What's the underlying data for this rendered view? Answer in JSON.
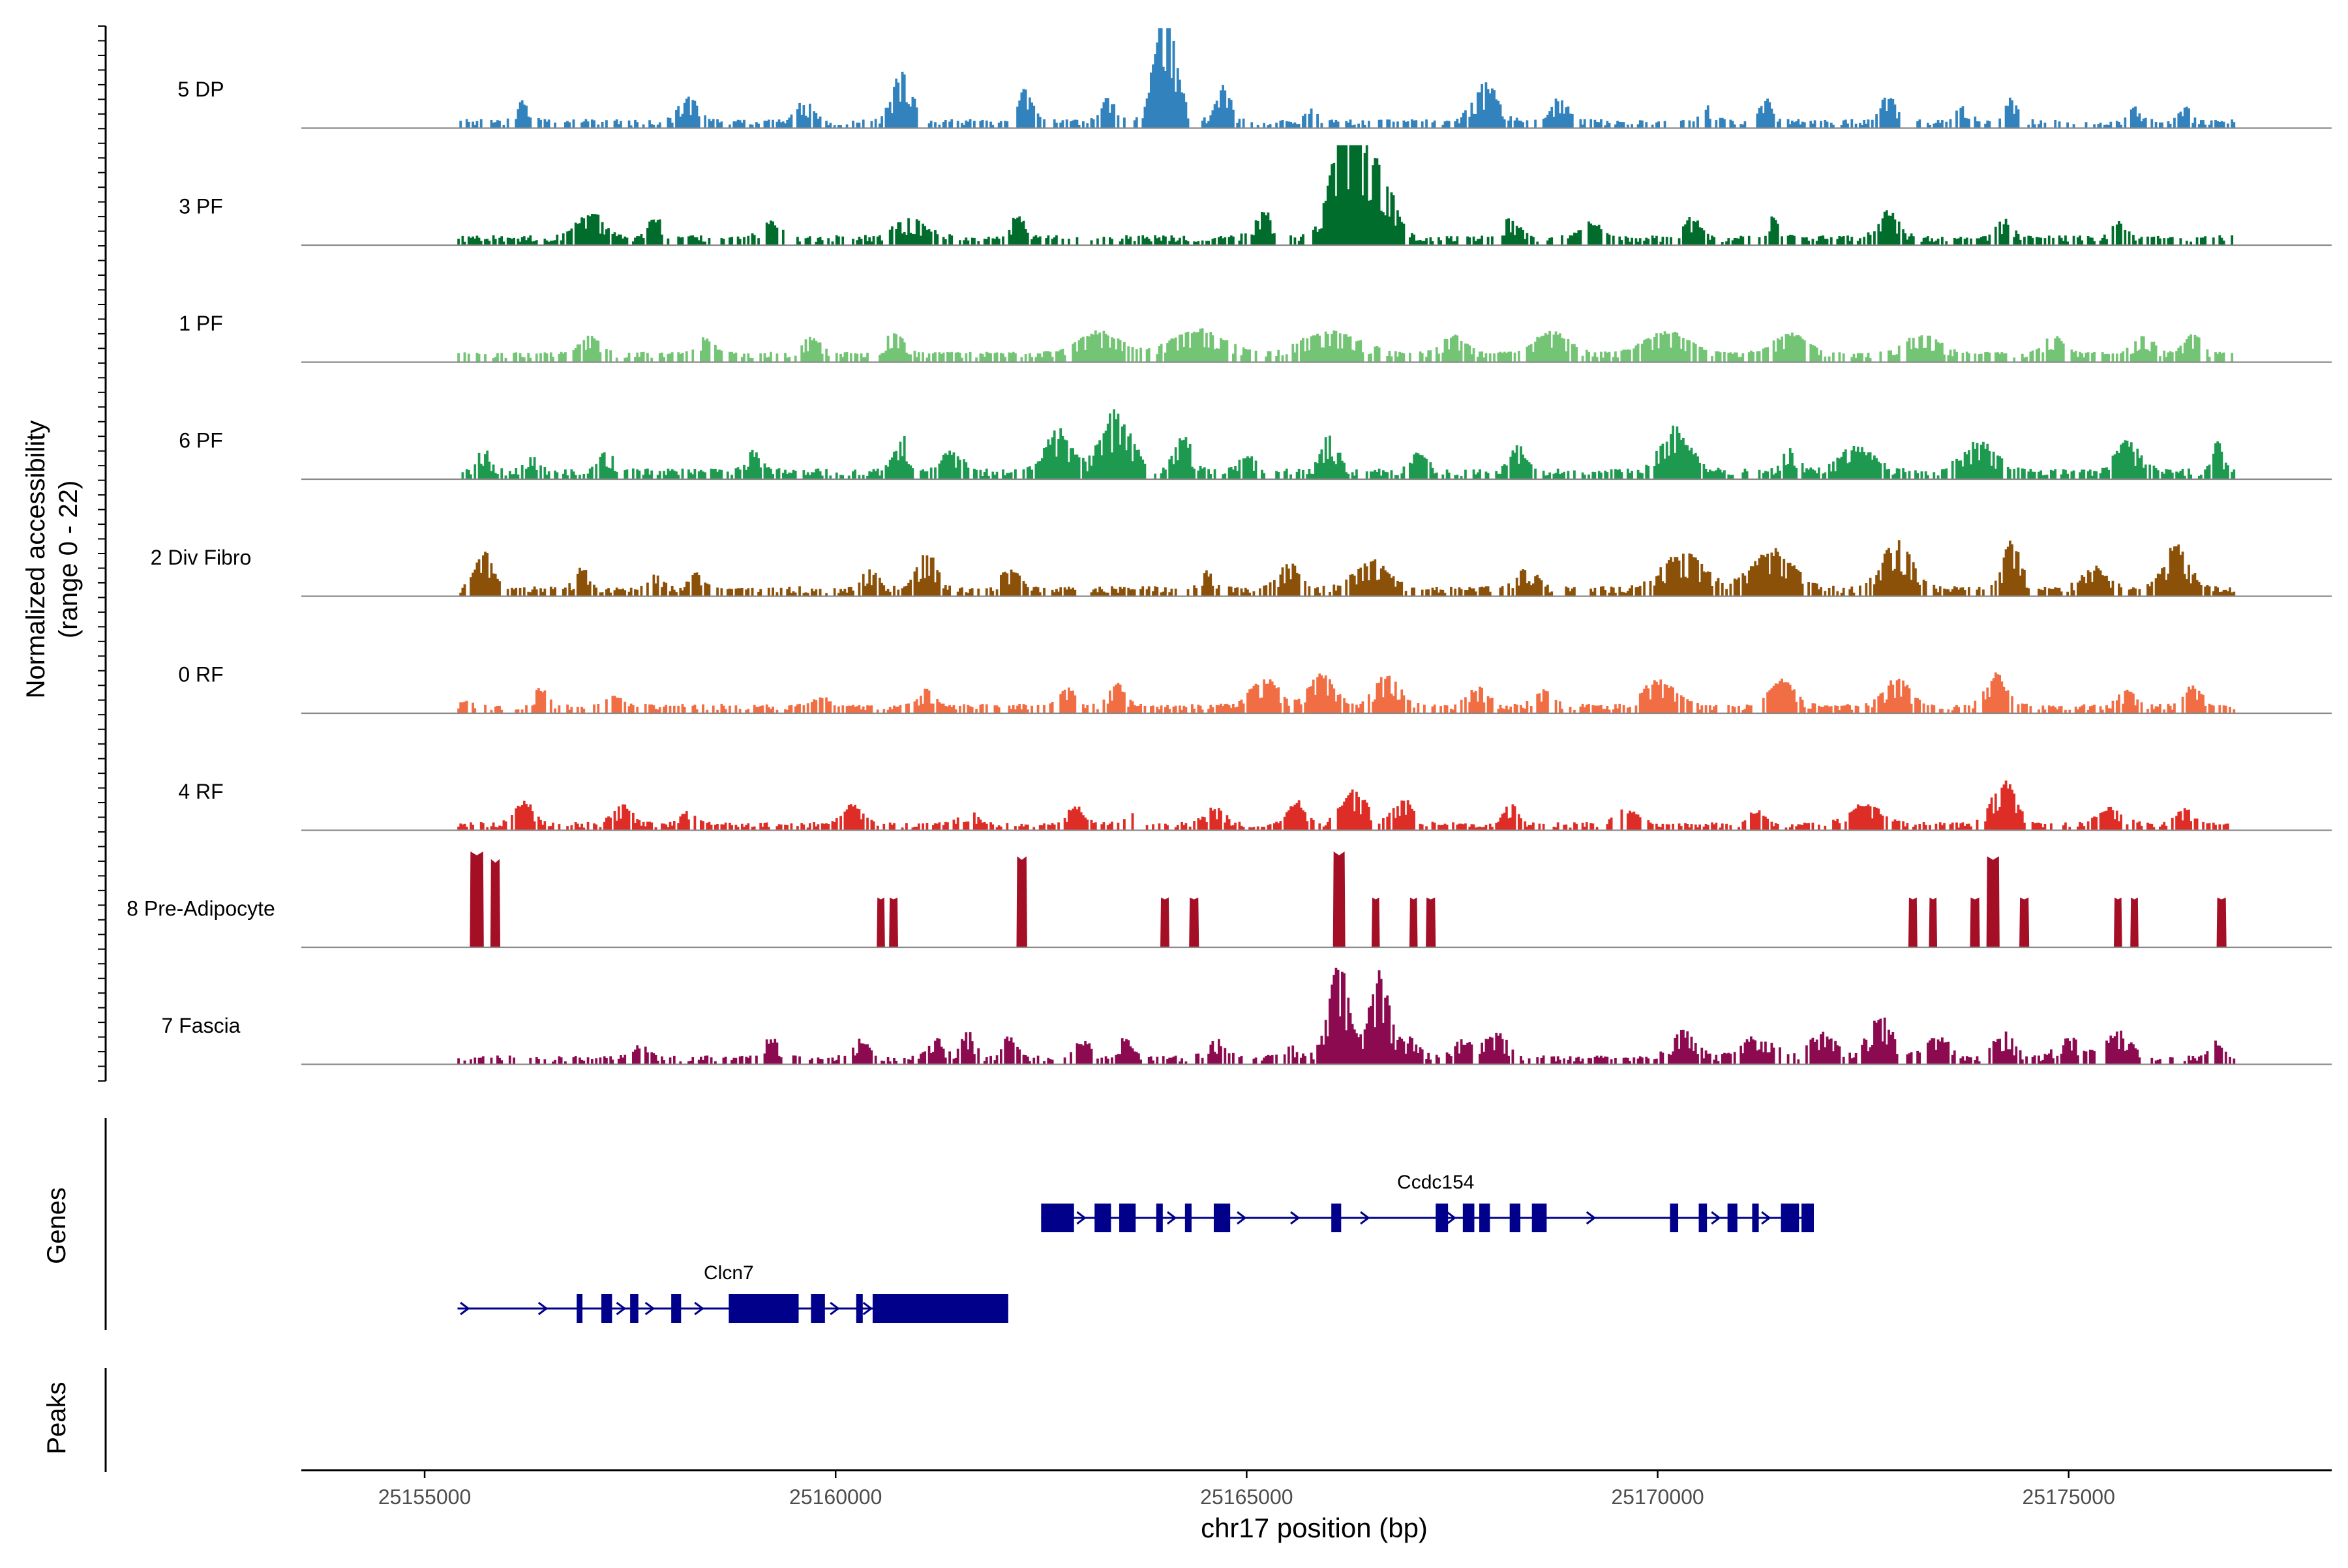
{
  "chart_data": {
    "type": "area",
    "title": "",
    "xlabel": "chr17 position (bp)",
    "ylabel_lines": [
      "Normalized accessibility",
      "(range 0 - 22)"
    ],
    "y_range": [
      0,
      22
    ],
    "xlim": [
      25153500,
      25178200
    ],
    "xticks": [
      25155000,
      25160000,
      25165000,
      25170000,
      25175000
    ],
    "xtick_labels": [
      "25155000",
      "25160000",
      "25165000",
      "25170000",
      "25175000"
    ],
    "track_extent": [
      25155400,
      25177000
    ],
    "tracks": [
      {
        "name": "5 DP",
        "color": "#3182bd",
        "density": 0.52,
        "base": 0.05,
        "noise": 0.1,
        "peaks": [
          [
            25156200,
            0.18,
            80
          ],
          [
            25158200,
            0.22,
            120
          ],
          [
            25159600,
            0.18,
            100
          ],
          [
            25160800,
            0.42,
            120
          ],
          [
            25162300,
            0.3,
            80
          ],
          [
            25163300,
            0.2,
            90
          ],
          [
            25164000,
            1.0,
            130
          ],
          [
            25164700,
            0.32,
            90
          ],
          [
            25165800,
            0.1,
            80
          ],
          [
            25167900,
            0.32,
            150
          ],
          [
            25168800,
            0.22,
            90
          ],
          [
            25170600,
            0.14,
            80
          ],
          [
            25171300,
            0.2,
            80
          ],
          [
            25172800,
            0.24,
            90
          ],
          [
            25173700,
            0.14,
            80
          ],
          [
            25174300,
            0.2,
            80
          ],
          [
            25175800,
            0.14,
            60
          ],
          [
            25176400,
            0.14,
            60
          ]
        ]
      },
      {
        "name": "3 PF",
        "color": "#006d2c",
        "density": 0.6,
        "base": 0.06,
        "noise": 0.1,
        "peaks": [
          [
            25157000,
            0.22,
            150
          ],
          [
            25157800,
            0.16,
            100
          ],
          [
            25159200,
            0.14,
            120
          ],
          [
            25160900,
            0.15,
            200
          ],
          [
            25162200,
            0.2,
            80
          ],
          [
            25165200,
            0.22,
            120
          ],
          [
            25166200,
            1.0,
            180
          ],
          [
            25166600,
            0.55,
            180
          ],
          [
            25168200,
            0.16,
            100
          ],
          [
            25169200,
            0.14,
            120
          ],
          [
            25170400,
            0.16,
            120
          ],
          [
            25171400,
            0.18,
            80
          ],
          [
            25172800,
            0.22,
            120
          ],
          [
            25174200,
            0.15,
            100
          ],
          [
            25175600,
            0.14,
            80
          ]
        ]
      },
      {
        "name": "1 PF",
        "color": "#74c476",
        "density": 0.62,
        "base": 0.08,
        "noise": 0.06,
        "peaks": [
          [
            25157000,
            0.16,
            120
          ],
          [
            25158400,
            0.14,
            100
          ],
          [
            25159700,
            0.14,
            120
          ],
          [
            25160700,
            0.18,
            120
          ],
          [
            25163200,
            0.2,
            250
          ],
          [
            25164400,
            0.22,
            300
          ],
          [
            25166000,
            0.2,
            350
          ],
          [
            25167500,
            0.16,
            150
          ],
          [
            25168700,
            0.2,
            200
          ],
          [
            25170100,
            0.2,
            250
          ],
          [
            25171600,
            0.18,
            200
          ],
          [
            25173200,
            0.18,
            200
          ],
          [
            25174800,
            0.16,
            120
          ],
          [
            25175900,
            0.16,
            120
          ],
          [
            25176500,
            0.18,
            100
          ]
        ]
      },
      {
        "name": "6 PF",
        "color": "#1d9a4f",
        "density": 0.62,
        "base": 0.06,
        "noise": 0.12,
        "peaks": [
          [
            25155700,
            0.18,
            80
          ],
          [
            25156300,
            0.14,
            80
          ],
          [
            25157200,
            0.16,
            100
          ],
          [
            25159000,
            0.16,
            100
          ],
          [
            25160800,
            0.3,
            100
          ],
          [
            25161400,
            0.18,
            120
          ],
          [
            25162700,
            0.35,
            150
          ],
          [
            25163400,
            0.5,
            180
          ],
          [
            25164200,
            0.3,
            120
          ],
          [
            25165000,
            0.14,
            100
          ],
          [
            25166000,
            0.3,
            100
          ],
          [
            25167100,
            0.16,
            100
          ],
          [
            25168300,
            0.2,
            100
          ],
          [
            25170200,
            0.36,
            180
          ],
          [
            25171600,
            0.18,
            100
          ],
          [
            25172400,
            0.22,
            200
          ],
          [
            25173900,
            0.24,
            200
          ],
          [
            25175700,
            0.24,
            150
          ],
          [
            25176800,
            0.26,
            60
          ]
        ]
      },
      {
        "name": "2 Div Fibro",
        "color": "#8c5109",
        "density": 0.62,
        "base": 0.06,
        "noise": 0.1,
        "peaks": [
          [
            25155700,
            0.34,
            100
          ],
          [
            25156900,
            0.18,
            80
          ],
          [
            25157800,
            0.14,
            80
          ],
          [
            25158300,
            0.14,
            80
          ],
          [
            25160400,
            0.16,
            100
          ],
          [
            25161100,
            0.3,
            120
          ],
          [
            25162100,
            0.16,
            120
          ],
          [
            25164500,
            0.14,
            100
          ],
          [
            25165500,
            0.22,
            120
          ],
          [
            25166500,
            0.24,
            200
          ],
          [
            25168400,
            0.18,
            120
          ],
          [
            25170300,
            0.3,
            250
          ],
          [
            25171400,
            0.34,
            250
          ],
          [
            25172900,
            0.4,
            180
          ],
          [
            25174300,
            0.44,
            100
          ],
          [
            25175300,
            0.18,
            150
          ],
          [
            25176300,
            0.38,
            150
          ]
        ]
      },
      {
        "name": "0 RF",
        "color": "#f16d43",
        "density": 0.58,
        "base": 0.06,
        "noise": 0.08,
        "peaks": [
          [
            25155500,
            0.05,
            60
          ],
          [
            25156400,
            0.16,
            80
          ],
          [
            25157300,
            0.1,
            80
          ],
          [
            25159800,
            0.08,
            100
          ],
          [
            25161100,
            0.14,
            100
          ],
          [
            25162800,
            0.16,
            100
          ],
          [
            25163400,
            0.2,
            100
          ],
          [
            25165200,
            0.24,
            180
          ],
          [
            25165900,
            0.28,
            150
          ],
          [
            25166700,
            0.28,
            150
          ],
          [
            25167800,
            0.16,
            120
          ],
          [
            25168600,
            0.14,
            120
          ],
          [
            25170000,
            0.22,
            200
          ],
          [
            25171500,
            0.24,
            150
          ],
          [
            25172900,
            0.24,
            150
          ],
          [
            25174100,
            0.28,
            120
          ],
          [
            25175700,
            0.14,
            100
          ],
          [
            25176500,
            0.18,
            100
          ]
        ]
      },
      {
        "name": "4 RF",
        "color": "#de2d26",
        "density": 0.62,
        "base": 0.05,
        "noise": 0.08,
        "peaks": [
          [
            25156200,
            0.2,
            120
          ],
          [
            25157400,
            0.16,
            120
          ],
          [
            25158200,
            0.12,
            100
          ],
          [
            25160200,
            0.18,
            120
          ],
          [
            25161600,
            0.12,
            100
          ],
          [
            25162900,
            0.16,
            100
          ],
          [
            25163600,
            0.1,
            100
          ],
          [
            25164600,
            0.14,
            120
          ],
          [
            25165600,
            0.2,
            100
          ],
          [
            25166300,
            0.3,
            150
          ],
          [
            25166900,
            0.22,
            120
          ],
          [
            25168200,
            0.18,
            80
          ],
          [
            25169600,
            0.12,
            150
          ],
          [
            25171200,
            0.12,
            100
          ],
          [
            25172500,
            0.18,
            200
          ],
          [
            25174200,
            0.38,
            150
          ],
          [
            25175500,
            0.14,
            150
          ],
          [
            25176400,
            0.14,
            100
          ]
        ]
      },
      {
        "name": "8 Pre-Adipocyte",
        "color": "#a50f26",
        "discrete": true,
        "blocks": [
          [
            25155550,
            25155720,
            1.0
          ],
          [
            25155800,
            25155920,
            0.92
          ],
          [
            25160500,
            25160600,
            0.52
          ],
          [
            25160650,
            25160760,
            0.52
          ],
          [
            25162200,
            25162330,
            0.95
          ],
          [
            25163950,
            25164060,
            0.52
          ],
          [
            25164300,
            25164420,
            0.52
          ],
          [
            25166050,
            25166200,
            1.0
          ],
          [
            25166520,
            25166620,
            0.52
          ],
          [
            25166980,
            25167080,
            0.52
          ],
          [
            25167180,
            25167300,
            0.52
          ],
          [
            25173050,
            25173160,
            0.52
          ],
          [
            25173300,
            25173400,
            0.52
          ],
          [
            25173800,
            25173920,
            0.52
          ],
          [
            25174000,
            25174160,
            0.95
          ],
          [
            25174400,
            25174520,
            0.52
          ],
          [
            25175550,
            25175650,
            0.52
          ],
          [
            25175750,
            25175850,
            0.52
          ],
          [
            25176800,
            25176920,
            0.52
          ]
        ]
      },
      {
        "name": "7 Fascia",
        "color": "#8b0a50",
        "density": 0.56,
        "base": 0.05,
        "noise": 0.1,
        "peaks": [
          [
            25157600,
            0.1,
            100
          ],
          [
            25159200,
            0.16,
            100
          ],
          [
            25160300,
            0.16,
            100
          ],
          [
            25161200,
            0.16,
            100
          ],
          [
            25161600,
            0.22,
            80
          ],
          [
            25162100,
            0.18,
            80
          ],
          [
            25163000,
            0.14,
            100
          ],
          [
            25163500,
            0.16,
            100
          ],
          [
            25164600,
            0.16,
            120
          ],
          [
            25165500,
            0.12,
            100
          ],
          [
            25166100,
            0.85,
            120
          ],
          [
            25166600,
            0.75,
            120
          ],
          [
            25167000,
            0.16,
            120
          ],
          [
            25167600,
            0.14,
            100
          ],
          [
            25168000,
            0.22,
            150
          ],
          [
            25170300,
            0.22,
            150
          ],
          [
            25171200,
            0.18,
            200
          ],
          [
            25172000,
            0.22,
            150
          ],
          [
            25172700,
            0.35,
            150
          ],
          [
            25173400,
            0.18,
            150
          ],
          [
            25174200,
            0.22,
            120
          ],
          [
            25175000,
            0.16,
            150
          ],
          [
            25175600,
            0.22,
            150
          ],
          [
            25176800,
            0.14,
            80
          ]
        ]
      }
    ],
    "gene_track_label": "Genes",
    "genes": [
      {
        "name": "Ccdc154",
        "start": 25162500,
        "end": 25171900,
        "row": 0,
        "exons": [
          [
            25162500,
            25162900
          ],
          [
            25163150,
            25163350
          ],
          [
            25163450,
            25163650
          ],
          [
            25163900,
            25163980
          ],
          [
            25164250,
            25164330
          ],
          [
            25164600,
            25164800
          ],
          [
            25166030,
            25166150
          ],
          [
            25167300,
            25167450
          ],
          [
            25167630,
            25167770
          ],
          [
            25167830,
            25167960
          ],
          [
            25168200,
            25168330
          ],
          [
            25168470,
            25168650
          ],
          [
            25170150,
            25170250
          ],
          [
            25170500,
            25170600
          ],
          [
            25170850,
            25170970
          ],
          [
            25171150,
            25171230
          ],
          [
            25171500,
            25171720
          ],
          [
            25171750,
            25171900
          ]
        ],
        "arrows": [
          25163000,
          25164100,
          25164950,
          25165600,
          25166450,
          25167500,
          25169200,
          25170720,
          25171330
        ]
      },
      {
        "name": "Clcn7",
        "start": 25155400,
        "end": 25162100,
        "row": 1,
        "exons": [
          [
            25156850,
            25156920
          ],
          [
            25157150,
            25157280
          ],
          [
            25157500,
            25157600
          ],
          [
            25158000,
            25158120
          ],
          [
            25158700,
            25159550
          ],
          [
            25159700,
            25159870
          ],
          [
            25160250,
            25160330
          ],
          [
            25160450,
            25162100
          ]
        ],
        "arrows": [
          25155500,
          25156450,
          25157400,
          25157750,
          25158350,
          25160000,
          25160400
        ]
      }
    ],
    "peaks_track_label": "Peaks",
    "peaks_track_values": []
  }
}
